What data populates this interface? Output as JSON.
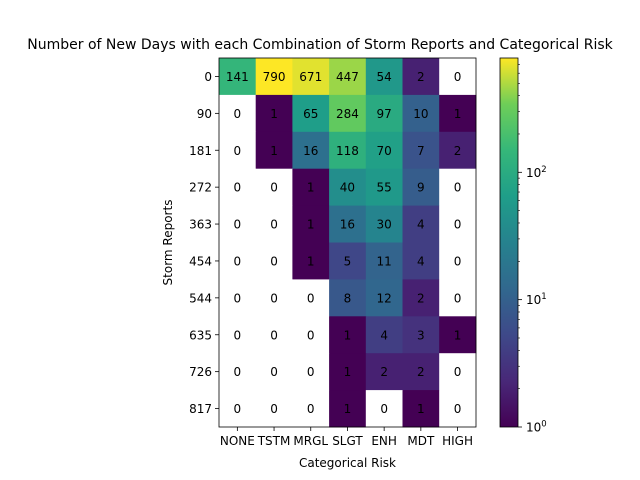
{
  "chart_data": {
    "type": "heatmap",
    "title": "Number of New Days with each Combination of Storm Reports and Categorical Risk",
    "xlabel": "Categorical Risk",
    "ylabel": "Storm Reports",
    "x_categories": [
      "NONE",
      "TSTM",
      "MRGL",
      "SLGT",
      "ENH",
      "MDT",
      "HIGH"
    ],
    "y_categories": [
      "0",
      "90",
      "181",
      "272",
      "363",
      "454",
      "544",
      "635",
      "726",
      "817"
    ],
    "values": [
      [
        141,
        790,
        671,
        447,
        54,
        2,
        0
      ],
      [
        0,
        1,
        65,
        284,
        97,
        10,
        1
      ],
      [
        0,
        1,
        16,
        118,
        70,
        7,
        2
      ],
      [
        0,
        0,
        1,
        40,
        55,
        9,
        0
      ],
      [
        0,
        0,
        1,
        16,
        30,
        4,
        0
      ],
      [
        0,
        0,
        1,
        5,
        11,
        4,
        0
      ],
      [
        0,
        0,
        0,
        8,
        12,
        2,
        0
      ],
      [
        0,
        0,
        0,
        1,
        4,
        3,
        1
      ],
      [
        0,
        0,
        0,
        1,
        2,
        2,
        0
      ],
      [
        0,
        0,
        0,
        1,
        0,
        1,
        0
      ]
    ],
    "colormap": "viridis",
    "color_scale": "log",
    "color_range": [
      1,
      790
    ],
    "colorbar_ticks": [
      {
        "value": 1,
        "base": "10",
        "exp": "0"
      },
      {
        "value": 10,
        "base": "10",
        "exp": "1"
      },
      {
        "value": 100,
        "base": "10",
        "exp": "2"
      }
    ],
    "zero_color": "#ffffff"
  }
}
